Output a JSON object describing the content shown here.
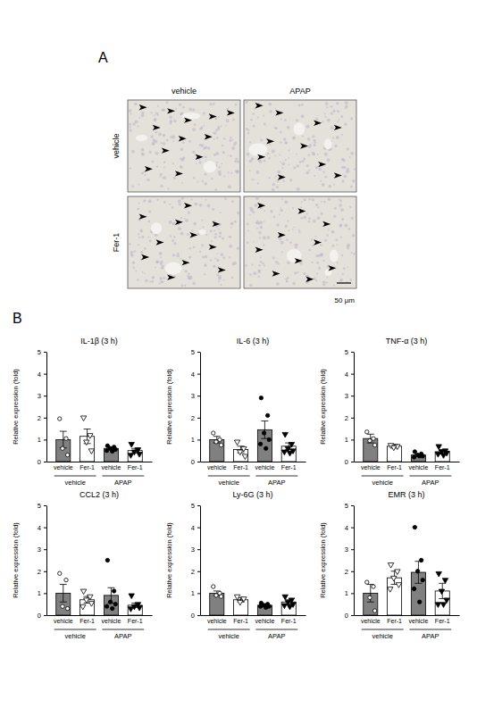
{
  "panel_a": {
    "label": "A",
    "columns": [
      "vehicle",
      "APAP"
    ],
    "rows": [
      "vehicle",
      "Fer-1"
    ],
    "scale_bar": "50 µm"
  },
  "panel_b_label": "B",
  "chart_data": [
    {
      "type": "bar",
      "title": "IL-1β (3 h)",
      "y_label": "Relative expression (fold)",
      "categories": [
        "vehicle",
        "Fer-1",
        "vehicle",
        "Fer-1"
      ],
      "groups": [
        "vehicle",
        "APAP"
      ],
      "ylim": [
        0,
        5
      ],
      "yticks": [
        0,
        1,
        2,
        3,
        4,
        5
      ],
      "series": [
        {
          "color": "#808080",
          "marker": "circle-open",
          "values": [
            1.0,
            null,
            null,
            null
          ],
          "errors": [
            0.38,
            null,
            null,
            null
          ],
          "points": [
            [
              1.95,
              1.05,
              0.6,
              0.3
            ],
            null,
            null,
            null
          ]
        },
        {
          "color": "#ffffff",
          "marker": "triangle-down-open",
          "values": [
            null,
            1.15,
            null,
            null
          ],
          "errors": [
            null,
            0.33,
            null,
            null
          ],
          "points": [
            null,
            [
              2.0,
              1.2,
              0.9,
              0.5
            ],
            null,
            null
          ]
        },
        {
          "color": "#808080",
          "marker": "circle",
          "values": [
            null,
            null,
            0.6,
            null
          ],
          "errors": [
            null,
            null,
            0.05,
            null
          ],
          "points": [
            null,
            null,
            [
              0.72,
              0.66,
              0.6,
              0.55,
              0.5,
              0.47
            ],
            null
          ]
        },
        {
          "color": "#ffffff",
          "marker": "triangle-down",
          "values": [
            null,
            null,
            null,
            0.5
          ],
          "errors": [
            null,
            null,
            null,
            0.1
          ],
          "points": [
            null,
            null,
            null,
            [
              0.8,
              0.55,
              0.45,
              0.35,
              0.3
            ]
          ]
        }
      ]
    },
    {
      "type": "bar",
      "title": "IL-6 (3 h)",
      "y_label": "Relative expression (fold)",
      "categories": [
        "vehicle",
        "Fer-1",
        "vehicle",
        "Fer-1"
      ],
      "groups": [
        "vehicle",
        "APAP"
      ],
      "ylim": [
        0,
        5
      ],
      "yticks": [
        0,
        1,
        2,
        3,
        4,
        5
      ],
      "series": [
        {
          "color": "#808080",
          "marker": "circle-open",
          "values": [
            1.0,
            null,
            null,
            null
          ],
          "errors": [
            0.15,
            null,
            null,
            null
          ],
          "points": [
            [
              1.3,
              1.0,
              0.9,
              0.75
            ],
            null,
            null,
            null
          ]
        },
        {
          "color": "#ffffff",
          "marker": "triangle-down-open",
          "values": [
            null,
            0.55,
            null,
            null
          ],
          "errors": [
            null,
            0.15,
            null,
            null
          ],
          "points": [
            null,
            [
              0.9,
              0.6,
              0.45,
              0.25
            ],
            null,
            null
          ]
        },
        {
          "color": "#808080",
          "marker": "circle",
          "values": [
            null,
            null,
            1.45,
            null
          ],
          "errors": [
            null,
            null,
            0.4,
            null
          ],
          "points": [
            null,
            null,
            [
              2.9,
              2.1,
              1.3,
              1.0,
              0.8,
              0.6
            ],
            null
          ]
        },
        {
          "color": "#ffffff",
          "marker": "triangle-down",
          "values": [
            null,
            null,
            null,
            0.7
          ],
          "errors": [
            null,
            null,
            null,
            0.15
          ],
          "points": [
            null,
            null,
            null,
            [
              1.25,
              0.8,
              0.6,
              0.5,
              0.45,
              0.4
            ]
          ]
        }
      ]
    },
    {
      "type": "bar",
      "title": "TNF-α (3 h)",
      "y_label": "Relative expression (fold)",
      "categories": [
        "vehicle",
        "Fer-1",
        "vehicle",
        "Fer-1"
      ],
      "groups": [
        "vehicle",
        "APAP"
      ],
      "ylim": [
        0,
        5
      ],
      "yticks": [
        0,
        1,
        2,
        3,
        4,
        5
      ],
      "series": [
        {
          "color": "#808080",
          "marker": "circle-open",
          "values": [
            1.05,
            null,
            null,
            null
          ],
          "errors": [
            0.2,
            null,
            null,
            null
          ],
          "points": [
            [
              1.35,
              1.05,
              0.95,
              0.75
            ],
            null,
            null,
            null
          ]
        },
        {
          "color": "#ffffff",
          "marker": "triangle-down-open",
          "values": [
            null,
            0.7,
            null,
            null
          ],
          "errors": [
            null,
            0.08,
            null,
            null
          ],
          "points": [
            null,
            [
              0.75,
              0.7,
              0.65
            ],
            null,
            null
          ]
        },
        {
          "color": "#808080",
          "marker": "circle",
          "values": [
            null,
            null,
            0.3,
            null
          ],
          "errors": [
            null,
            null,
            0.05,
            null
          ],
          "points": [
            null,
            null,
            [
              0.45,
              0.35,
              0.3,
              0.25,
              0.2,
              0.25
            ],
            null
          ]
        },
        {
          "color": "#ffffff",
          "marker": "triangle-down",
          "values": [
            null,
            null,
            null,
            0.45
          ],
          "errors": [
            null,
            null,
            null,
            0.1
          ],
          "points": [
            null,
            null,
            null,
            [
              0.7,
              0.5,
              0.45,
              0.4,
              0.35,
              0.3
            ]
          ]
        }
      ]
    },
    {
      "type": "bar",
      "title": "CCL2 (3 h)",
      "y_label": "Relative expression (fold)",
      "categories": [
        "vehicle",
        "Fer-1",
        "vehicle",
        "Fer-1"
      ],
      "groups": [
        "vehicle",
        "APAP"
      ],
      "ylim": [
        0,
        5
      ],
      "yticks": [
        0,
        1,
        2,
        3,
        4,
        5
      ],
      "series": [
        {
          "color": "#808080",
          "marker": "circle-open",
          "values": [
            1.0,
            null,
            null,
            null
          ],
          "errors": [
            0.4,
            null,
            null,
            null
          ],
          "points": [
            [
              1.9,
              1.6,
              0.4,
              0.3
            ],
            null,
            null,
            null
          ]
        },
        {
          "color": "#ffffff",
          "marker": "triangle-down-open",
          "values": [
            null,
            0.7,
            null,
            null
          ],
          "errors": [
            null,
            0.15,
            null,
            null
          ],
          "points": [
            null,
            [
              1.1,
              0.85,
              0.7,
              0.55,
              0.4
            ],
            null,
            null
          ]
        },
        {
          "color": "#808080",
          "marker": "circle",
          "values": [
            null,
            null,
            0.9,
            null
          ],
          "errors": [
            null,
            null,
            0.35,
            null
          ],
          "points": [
            null,
            null,
            [
              2.5,
              1.1,
              0.6,
              0.5,
              0.4,
              0.3
            ],
            null
          ]
        },
        {
          "color": "#ffffff",
          "marker": "triangle-down",
          "values": [
            null,
            null,
            null,
            0.45
          ],
          "errors": [
            null,
            null,
            null,
            0.1
          ],
          "points": [
            null,
            null,
            null,
            [
              0.9,
              0.5,
              0.4,
              0.35,
              0.3
            ]
          ]
        }
      ]
    },
    {
      "type": "bar",
      "title": "Ly-6G (3 h)",
      "y_label": "Relative expression (fold)",
      "categories": [
        "vehicle",
        "Fer-1",
        "vehicle",
        "Fer-1"
      ],
      "groups": [
        "vehicle",
        "APAP"
      ],
      "ylim": [
        0,
        5
      ],
      "yticks": [
        0,
        1,
        2,
        3,
        4,
        5
      ],
      "series": [
        {
          "color": "#808080",
          "marker": "circle-open",
          "values": [
            1.0,
            null,
            null,
            null
          ],
          "errors": [
            0.1,
            null,
            null,
            null
          ],
          "points": [
            [
              1.3,
              1.0,
              0.9,
              0.85
            ],
            null,
            null,
            null
          ]
        },
        {
          "color": "#ffffff",
          "marker": "triangle-down-open",
          "values": [
            null,
            0.7,
            null,
            null
          ],
          "errors": [
            null,
            0.1,
            null,
            null
          ],
          "points": [
            null,
            [
              0.85,
              0.75,
              0.6
            ],
            null,
            null
          ]
        },
        {
          "color": "#808080",
          "marker": "circle",
          "values": [
            null,
            null,
            0.45,
            null
          ],
          "errors": [
            null,
            null,
            0.05,
            null
          ],
          "points": [
            null,
            null,
            [
              0.55,
              0.5,
              0.45,
              0.4,
              0.4,
              0.35
            ],
            null
          ]
        },
        {
          "color": "#ffffff",
          "marker": "triangle-down",
          "values": [
            null,
            null,
            null,
            0.6
          ],
          "errors": [
            null,
            null,
            null,
            0.1
          ],
          "points": [
            null,
            null,
            null,
            [
              0.85,
              0.7,
              0.6,
              0.5,
              0.45,
              0.4
            ]
          ]
        }
      ]
    },
    {
      "type": "bar",
      "title": "EMR (3 h)",
      "y_label": "Relative expression (fold)",
      "categories": [
        "vehicle",
        "Fer-1",
        "vehicle",
        "Fer-1"
      ],
      "groups": [
        "vehicle",
        "APAP"
      ],
      "ylim": [
        0,
        5
      ],
      "yticks": [
        0,
        1,
        2,
        3,
        4,
        5
      ],
      "series": [
        {
          "color": "#808080",
          "marker": "circle-open",
          "values": [
            1.0,
            null,
            null,
            null
          ],
          "errors": [
            0.4,
            null,
            null,
            null
          ],
          "points": [
            [
              1.5,
              1.3,
              0.8,
              0.2
            ],
            null,
            null,
            null
          ]
        },
        {
          "color": "#ffffff",
          "marker": "triangle-down-open",
          "values": [
            null,
            1.7,
            null,
            null
          ],
          "errors": [
            null,
            0.3,
            null,
            null
          ],
          "points": [
            null,
            [
              2.3,
              2.0,
              1.7,
              1.4,
              1.2
            ],
            null,
            null
          ]
        },
        {
          "color": "#808080",
          "marker": "circle",
          "values": [
            null,
            null,
            1.95,
            null
          ],
          "errors": [
            null,
            null,
            0.5,
            null
          ],
          "points": [
            null,
            null,
            [
              4.0,
              2.5,
              2.0,
              1.6,
              1.2,
              0.6
            ],
            null
          ]
        },
        {
          "color": "#ffffff",
          "marker": "triangle-down",
          "values": [
            null,
            null,
            null,
            1.1
          ],
          "errors": [
            null,
            null,
            null,
            0.35
          ],
          "points": [
            null,
            null,
            null,
            [
              1.9,
              1.6,
              1.1,
              0.7,
              0.5,
              0.5
            ]
          ]
        }
      ]
    }
  ]
}
